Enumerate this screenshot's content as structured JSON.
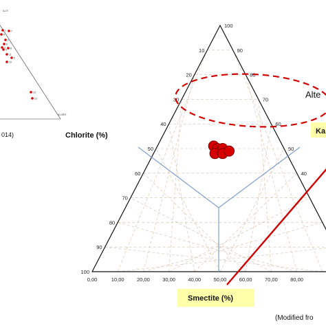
{
  "chart_data": [
    {
      "type": "scatter",
      "subtype": "ternary",
      "title": "",
      "axis_ticks": {
        "left": [
          "100",
          "90",
          "80",
          "70",
          "60",
          "50",
          "40",
          "30",
          "20",
          "10"
        ],
        "right": [
          "100",
          "90",
          "80",
          "70",
          "60",
          "50",
          "40"
        ],
        "bottom": [
          "0,00",
          "10,00",
          "20,00",
          "30,00",
          "40,00",
          "50,00",
          "60,00",
          "70,00",
          "80,00"
        ]
      },
      "axis_labels": {
        "left": "Chlorite (%)",
        "bottom": "Smectite (%)",
        "right_partial": "Ka"
      },
      "fields": [
        {
          "name": "Smectite",
          "boundary": "at 50% lines, meeting at centre"
        },
        {
          "name": "Chlorite",
          "boundary": "at 50% lines, meeting at centre"
        },
        {
          "name": "Kaolinite",
          "boundary": "at 50% lines, meeting at centre"
        }
      ],
      "zone_label": "Alte",
      "points": [
        {
          "smectite": 51,
          "kaolinite": 22
        },
        {
          "smectite": 50,
          "kaolinite": 24
        },
        {
          "smectite": 50,
          "kaolinite": 26
        },
        {
          "smectite": 48,
          "kaolinite": 24
        },
        {
          "smectite": 48,
          "kaolinite": 27
        },
        {
          "smectite": 49,
          "kaolinite": 29
        }
      ],
      "trend_line": "red line crossing lower right",
      "credit": "(Modified fro"
    },
    {
      "type": "scatter",
      "subtype": "ternary-inset",
      "corner_labels": {
        "top": "ILLIT",
        "bottom_right": "KLORIT"
      },
      "point_labels": [
        "1",
        "5",
        "7",
        "2",
        "6",
        "3",
        "4",
        "8",
        "11",
        "9",
        "10",
        "13",
        "12"
      ],
      "caption": "014)"
    }
  ],
  "colors": {
    "point_fill": "#d60000",
    "point_stroke": "#7a0000",
    "ellipse": "#d00000",
    "trend": "#cc0000",
    "field_lines": "#7f9fd0",
    "grid": "#d6bfa8",
    "label_box": "#ffffaa"
  }
}
